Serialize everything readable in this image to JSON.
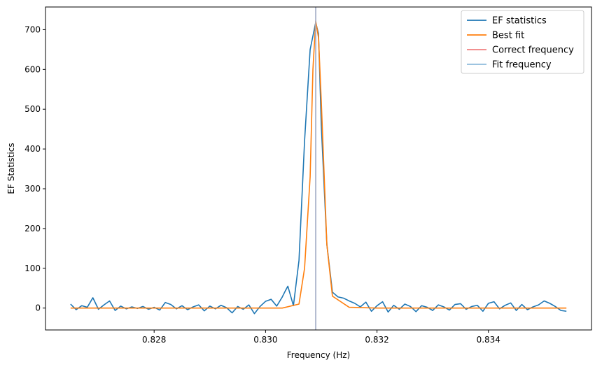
{
  "chart_data": {
    "type": "line",
    "title": "",
    "xlabel": "Frequency (Hz)",
    "ylabel": "EF Statistics",
    "xlim": [
      0.82605,
      0.83585
    ],
    "ylim": [
      -55,
      757
    ],
    "xticks": [
      0.828,
      0.83,
      0.832,
      0.834
    ],
    "xtick_labels": [
      "0.828",
      "0.830",
      "0.832",
      "0.834"
    ],
    "yticks": [
      0,
      100,
      200,
      300,
      400,
      500,
      600,
      700
    ],
    "ytick_labels": [
      "0",
      "100",
      "200",
      "300",
      "400",
      "500",
      "600",
      "700"
    ],
    "grid": false,
    "legend_position": "top-right",
    "series": [
      {
        "name": "EF statistics",
        "color": "#1f77b4",
        "x": [
          0.8265,
          0.8266,
          0.8267,
          0.8268,
          0.8269,
          0.827,
          0.8271,
          0.8272,
          0.8273,
          0.8274,
          0.8275,
          0.8276,
          0.8277,
          0.8278,
          0.8279,
          0.828,
          0.8281,
          0.8282,
          0.8283,
          0.8284,
          0.8285,
          0.8286,
          0.8287,
          0.8288,
          0.8289,
          0.829,
          0.8291,
          0.8292,
          0.8293,
          0.8294,
          0.8295,
          0.8296,
          0.8297,
          0.8298,
          0.8299,
          0.83,
          0.8301,
          0.8302,
          0.8303,
          0.83035,
          0.8304,
          0.8305,
          0.8306,
          0.8307,
          0.8308,
          0.8309,
          0.83095,
          0.831,
          0.8311,
          0.8312,
          0.8313,
          0.8314,
          0.8315,
          0.8316,
          0.8317,
          0.8318,
          0.8319,
          0.832,
          0.8321,
          0.8322,
          0.8323,
          0.8324,
          0.8325,
          0.8326,
          0.8327,
          0.8328,
          0.8329,
          0.833,
          0.8331,
          0.8332,
          0.8333,
          0.8334,
          0.8335,
          0.8336,
          0.8337,
          0.8338,
          0.8339,
          0.834,
          0.8341,
          0.8342,
          0.8343,
          0.8344,
          0.8345,
          0.8346,
          0.8347,
          0.8348,
          0.8349,
          0.835,
          0.8351,
          0.8352,
          0.8353,
          0.8354
        ],
        "y": [
          10,
          -4,
          6,
          2,
          26,
          -3,
          8,
          18,
          -6,
          5,
          -2,
          3,
          -1,
          4,
          -3,
          2,
          -5,
          14,
          9,
          -2,
          6,
          -4,
          3,
          8,
          -7,
          5,
          -2,
          7,
          1,
          -12,
          4,
          -3,
          8,
          -14,
          4,
          17,
          22,
          5,
          28,
          42,
          55,
          6,
          120,
          420,
          650,
          718,
          690,
          460,
          160,
          40,
          28,
          25,
          18,
          12,
          3,
          15,
          -8,
          6,
          16,
          -10,
          7,
          -3,
          10,
          4,
          -9,
          6,
          2,
          -6,
          8,
          3,
          -5,
          9,
          11,
          -3,
          4,
          7,
          -8,
          12,
          16,
          -2,
          7,
          13,
          -6,
          9,
          -4,
          3,
          8,
          18,
          12,
          4,
          -6,
          -8
        ]
      },
      {
        "name": "Best fit",
        "color": "#ff7f0e",
        "x": [
          0.8265,
          0.829,
          0.8303,
          0.8306,
          0.8307,
          0.8308,
          0.83085,
          0.8309,
          0.83095,
          0.831,
          0.8311,
          0.8312,
          0.8315,
          0.832,
          0.8354
        ],
        "y": [
          0,
          0,
          0,
          10,
          100,
          330,
          600,
          722,
          680,
          520,
          160,
          30,
          2,
          0,
          0
        ]
      },
      {
        "name": "Correct frequency",
        "color": "#f08080",
        "vline": 0.8309
      },
      {
        "name": "Fit frequency",
        "color": "#8fbcdb",
        "vline": 0.8309
      }
    ]
  }
}
